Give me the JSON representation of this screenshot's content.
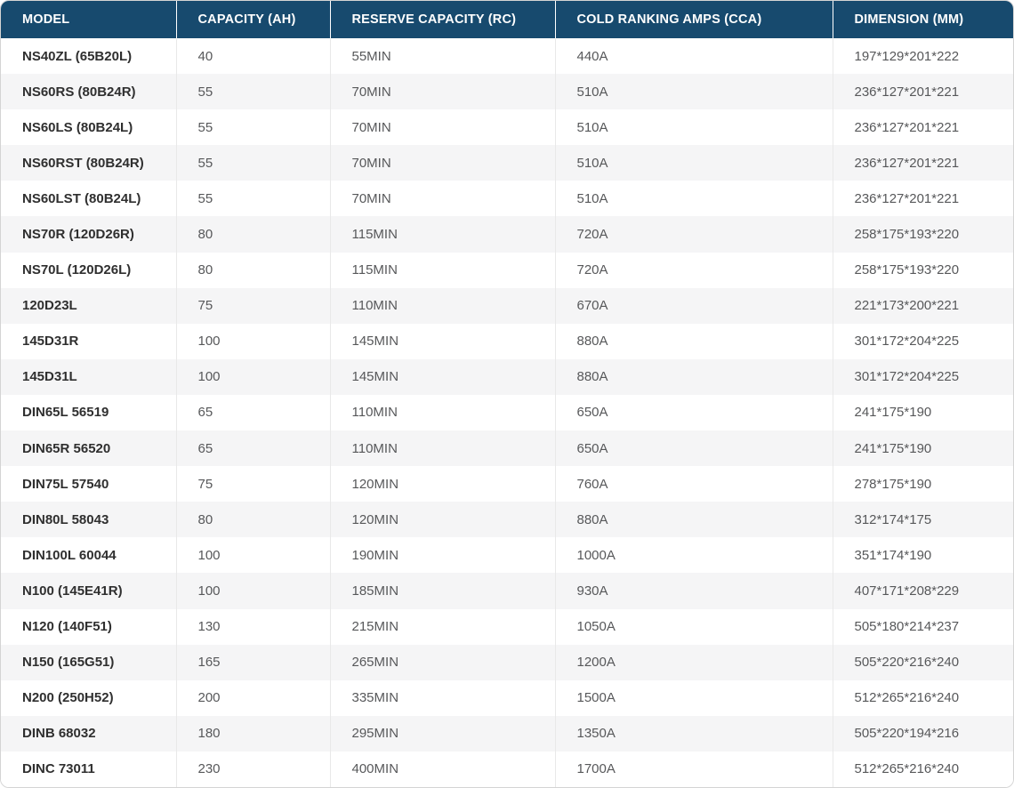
{
  "colors": {
    "header_bg": "#174a6e",
    "header_text": "#ffffff",
    "row_stripe": "#f5f5f6",
    "row_white": "#ffffff",
    "model_text": "#2f2f2f",
    "value_text": "#57585a",
    "outer_border": "#d4d4d4",
    "column_divider": "#e9e9e9"
  },
  "table": {
    "columns": [
      "MODEL",
      "CAPACITY (AH)",
      "RESERVE CAPACITY (RC)",
      "COLD RANKING AMPS (CCA)",
      "DIMENSION (MM)"
    ],
    "rows": [
      [
        "NS40ZL (65B20L)",
        "40",
        "55MIN",
        "440A",
        "197*129*201*222"
      ],
      [
        "NS60RS (80B24R)",
        "55",
        "70MIN",
        "510A",
        "236*127*201*221"
      ],
      [
        "NS60LS (80B24L)",
        "55",
        "70MIN",
        "510A",
        "236*127*201*221"
      ],
      [
        "NS60RST (80B24R)",
        "55",
        "70MIN",
        "510A",
        "236*127*201*221"
      ],
      [
        "NS60LST (80B24L)",
        "55",
        "70MIN",
        "510A",
        "236*127*201*221"
      ],
      [
        "NS70R (120D26R)",
        "80",
        "115MIN",
        "720A",
        "258*175*193*220"
      ],
      [
        "NS70L (120D26L)",
        "80",
        "115MIN",
        "720A",
        "258*175*193*220"
      ],
      [
        "120D23L",
        "75",
        "110MIN",
        "670A",
        "221*173*200*221"
      ],
      [
        "145D31R",
        "100",
        "145MIN",
        "880A",
        "301*172*204*225"
      ],
      [
        "145D31L",
        "100",
        "145MIN",
        "880A",
        "301*172*204*225"
      ],
      [
        "DIN65L 56519",
        "65",
        "110MIN",
        "650A",
        "241*175*190"
      ],
      [
        "DIN65R 56520",
        "65",
        "110MIN",
        "650A",
        "241*175*190"
      ],
      [
        "DIN75L 57540",
        "75",
        "120MIN",
        "760A",
        "278*175*190"
      ],
      [
        "DIN80L 58043",
        "80",
        "120MIN",
        "880A",
        "312*174*175"
      ],
      [
        "DIN100L 60044",
        "100",
        "190MIN",
        "1000A",
        "351*174*190"
      ],
      [
        "N100 (145E41R)",
        "100",
        "185MIN",
        "930A",
        "407*171*208*229"
      ],
      [
        "N120 (140F51)",
        "130",
        "215MIN",
        "1050A",
        "505*180*214*237"
      ],
      [
        "N150 (165G51)",
        "165",
        "265MIN",
        "1200A",
        "505*220*216*240"
      ],
      [
        "N200 (250H52)",
        "200",
        "335MIN",
        "1500A",
        "512*265*216*240"
      ],
      [
        "DINB 68032",
        "180",
        "295MIN",
        "1350A",
        "505*220*194*216"
      ],
      [
        "DINC 73011",
        "230",
        "400MIN",
        "1700A",
        "512*265*216*240"
      ]
    ]
  }
}
